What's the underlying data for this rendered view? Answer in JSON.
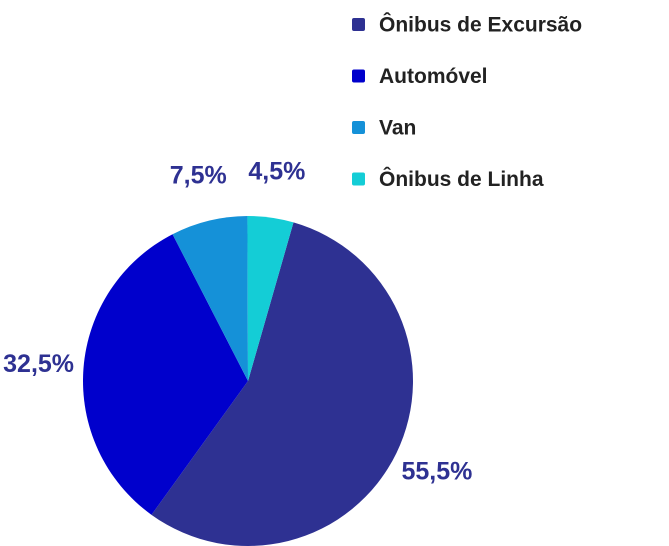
{
  "chart_data": {
    "type": "pie",
    "categories": [
      "Ônibus de Excursão",
      "Automóvel",
      "Van",
      "Ônibus de Linha"
    ],
    "values": [
      55.5,
      32.5,
      7.5,
      4.5
    ],
    "value_labels": [
      "55,5%",
      "32,5%",
      "7,5%",
      "4,5%"
    ],
    "colors": [
      "#2e3192",
      "#0000cc",
      "#1591d8",
      "#14cdd6"
    ],
    "legend": "upper right"
  }
}
